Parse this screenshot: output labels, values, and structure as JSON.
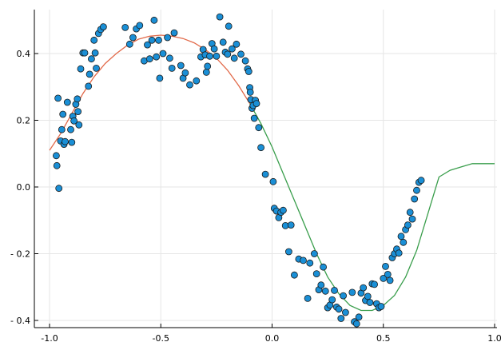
{
  "chart_data": {
    "type": "scatter",
    "title": "",
    "xlabel": "",
    "ylabel": "",
    "xlim": [
      -1.0,
      1.0
    ],
    "ylim": [
      -0.42,
      0.52
    ],
    "grid": true,
    "legend": "none",
    "x_ticks": [
      -1.0,
      -0.5,
      0.0,
      0.5,
      1.0
    ],
    "x_tick_labels": [
      "-1.0",
      "-0.5",
      "0.0",
      "0.5",
      "1.0"
    ],
    "y_ticks": [
      -0.4,
      -0.2,
      0.0,
      0.2,
      0.4
    ],
    "y_tick_labels": [
      "- 0.4",
      "- 0.2",
      "0.0",
      "0.2",
      "0.4"
    ],
    "colors": {
      "points": "#1a8fd6",
      "point_edge": "#1a1a1a",
      "fit_left": "#e26a4a",
      "fit_right": "#3a9e4c",
      "grid": "#e6e6e6"
    },
    "series": [
      {
        "type": "scatter",
        "points": [
          [
            -0.97,
            0.094
          ],
          [
            -0.967,
            0.064
          ],
          [
            -0.962,
            0.266
          ],
          [
            -0.958,
            -0.004
          ],
          [
            -0.95,
            0.138
          ],
          [
            -0.945,
            0.172
          ],
          [
            -0.94,
            0.218
          ],
          [
            -0.935,
            0.128
          ],
          [
            -0.93,
            0.136
          ],
          [
            -0.92,
            0.254
          ],
          [
            -0.905,
            0.172
          ],
          [
            -0.9,
            0.134
          ],
          [
            -0.895,
            0.212
          ],
          [
            -0.89,
            0.198
          ],
          [
            -0.882,
            0.248
          ],
          [
            -0.875,
            0.264
          ],
          [
            -0.872,
            0.226
          ],
          [
            -0.868,
            0.186
          ],
          [
            -0.86,
            0.354
          ],
          [
            -0.85,
            0.402
          ],
          [
            -0.842,
            0.402
          ],
          [
            -0.825,
            0.302
          ],
          [
            -0.82,
            0.338
          ],
          [
            -0.812,
            0.384
          ],
          [
            -0.8,
            0.44
          ],
          [
            -0.795,
            0.402
          ],
          [
            -0.79,
            0.356
          ],
          [
            -0.78,
            0.46
          ],
          [
            -0.77,
            0.472
          ],
          [
            -0.758,
            0.48
          ],
          [
            -0.66,
            0.478
          ],
          [
            -0.64,
            0.428
          ],
          [
            -0.625,
            0.448
          ],
          [
            -0.61,
            0.474
          ],
          [
            -0.595,
            0.484
          ],
          [
            -0.575,
            0.378
          ],
          [
            -0.56,
            0.426
          ],
          [
            -0.55,
            0.384
          ],
          [
            -0.54,
            0.44
          ],
          [
            -0.53,
            0.5
          ],
          [
            -0.52,
            0.39
          ],
          [
            -0.51,
            0.44
          ],
          [
            -0.505,
            0.326
          ],
          [
            -0.49,
            0.4
          ],
          [
            -0.47,
            0.448
          ],
          [
            -0.46,
            0.386
          ],
          [
            -0.45,
            0.356
          ],
          [
            -0.44,
            0.462
          ],
          [
            -0.41,
            0.364
          ],
          [
            -0.4,
            0.326
          ],
          [
            -0.39,
            0.342
          ],
          [
            -0.37,
            0.306
          ],
          [
            -0.34,
            0.318
          ],
          [
            -0.32,
            0.39
          ],
          [
            -0.31,
            0.412
          ],
          [
            -0.3,
            0.396
          ],
          [
            -0.295,
            0.344
          ],
          [
            -0.29,
            0.362
          ],
          [
            -0.28,
            0.392
          ],
          [
            -0.27,
            0.43
          ],
          [
            -0.26,
            0.414
          ],
          [
            -0.25,
            0.392
          ],
          [
            -0.235,
            0.51
          ],
          [
            -0.22,
            0.434
          ],
          [
            -0.21,
            0.404
          ],
          [
            -0.2,
            0.398
          ],
          [
            -0.195,
            0.482
          ],
          [
            -0.18,
            0.414
          ],
          [
            -0.17,
            0.386
          ],
          [
            -0.16,
            0.428
          ],
          [
            -0.14,
            0.398
          ],
          [
            -0.12,
            0.378
          ],
          [
            -0.11,
            0.354
          ],
          [
            -0.105,
            0.346
          ],
          [
            -0.1,
            0.298
          ],
          [
            -0.098,
            0.284
          ],
          [
            -0.095,
            0.262
          ],
          [
            -0.09,
            0.236
          ],
          [
            -0.085,
            0.244
          ],
          [
            -0.08,
            0.206
          ],
          [
            -0.075,
            0.26
          ],
          [
            -0.07,
            0.25
          ],
          [
            -0.06,
            0.178
          ],
          [
            -0.05,
            0.118
          ],
          [
            -0.03,
            0.038
          ],
          [
            0.005,
            0.016
          ],
          [
            0.01,
            -0.064
          ],
          [
            0.02,
            -0.072
          ],
          [
            0.03,
            -0.092
          ],
          [
            0.04,
            -0.076
          ],
          [
            0.05,
            -0.07
          ],
          [
            0.06,
            -0.116
          ],
          [
            0.075,
            -0.194
          ],
          [
            0.085,
            -0.114
          ],
          [
            0.1,
            -0.264
          ],
          [
            0.12,
            -0.216
          ],
          [
            0.14,
            -0.22
          ],
          [
            0.16,
            -0.334
          ],
          [
            0.17,
            -0.228
          ],
          [
            0.19,
            -0.2
          ],
          [
            0.2,
            -0.26
          ],
          [
            0.21,
            -0.308
          ],
          [
            0.22,
            -0.294
          ],
          [
            0.23,
            -0.24
          ],
          [
            0.24,
            -0.312
          ],
          [
            0.25,
            -0.362
          ],
          [
            0.26,
            -0.354
          ],
          [
            0.27,
            -0.338
          ],
          [
            0.28,
            -0.31
          ],
          [
            0.29,
            -0.36
          ],
          [
            0.3,
            -0.366
          ],
          [
            0.31,
            -0.394
          ],
          [
            0.32,
            -0.326
          ],
          [
            0.33,
            -0.376
          ],
          [
            0.36,
            -0.316
          ],
          [
            0.37,
            -0.404
          ],
          [
            0.38,
            -0.41
          ],
          [
            0.39,
            -0.39
          ],
          [
            0.4,
            -0.318
          ],
          [
            0.41,
            -0.302
          ],
          [
            0.42,
            -0.34
          ],
          [
            0.43,
            -0.328
          ],
          [
            0.44,
            -0.346
          ],
          [
            0.45,
            -0.29
          ],
          [
            0.46,
            -0.292
          ],
          [
            0.47,
            -0.35
          ],
          [
            0.48,
            -0.362
          ],
          [
            0.49,
            -0.358
          ],
          [
            0.5,
            -0.274
          ],
          [
            0.51,
            -0.238
          ],
          [
            0.52,
            -0.262
          ],
          [
            0.53,
            -0.28
          ],
          [
            0.54,
            -0.212
          ],
          [
            0.55,
            -0.2
          ],
          [
            0.56,
            -0.186
          ],
          [
            0.57,
            -0.198
          ],
          [
            0.58,
            -0.148
          ],
          [
            0.59,
            -0.166
          ],
          [
            0.6,
            -0.128
          ],
          [
            0.61,
            -0.114
          ],
          [
            0.62,
            -0.076
          ],
          [
            0.63,
            -0.096
          ],
          [
            0.64,
            -0.036
          ],
          [
            0.65,
            -0.01
          ],
          [
            0.66,
            0.014
          ],
          [
            0.67,
            0.02
          ]
        ]
      },
      {
        "type": "line",
        "color": "#e26a4a",
        "points": [
          [
            -1.0,
            0.11
          ],
          [
            -0.95,
            0.16
          ],
          [
            -0.9,
            0.22
          ],
          [
            -0.85,
            0.28
          ],
          [
            -0.8,
            0.33
          ],
          [
            -0.75,
            0.37
          ],
          [
            -0.7,
            0.4
          ],
          [
            -0.65,
            0.425
          ],
          [
            -0.6,
            0.443
          ],
          [
            -0.55,
            0.452
          ],
          [
            -0.5,
            0.455
          ],
          [
            -0.45,
            0.452
          ],
          [
            -0.4,
            0.445
          ],
          [
            -0.35,
            0.432
          ],
          [
            -0.3,
            0.412
          ],
          [
            -0.25,
            0.386
          ],
          [
            -0.2,
            0.35
          ],
          [
            -0.15,
            0.304
          ],
          [
            -0.1,
            0.25
          ]
        ]
      },
      {
        "type": "line",
        "color": "#3a9e4c",
        "points": [
          [
            -0.1,
            0.25
          ],
          [
            -0.05,
            0.19
          ],
          [
            0.0,
            0.12
          ],
          [
            0.05,
            0.04
          ],
          [
            0.1,
            -0.04
          ],
          [
            0.15,
            -0.12
          ],
          [
            0.2,
            -0.2
          ],
          [
            0.25,
            -0.27
          ],
          [
            0.3,
            -0.32
          ],
          [
            0.35,
            -0.355
          ],
          [
            0.4,
            -0.37
          ],
          [
            0.45,
            -0.37
          ],
          [
            0.5,
            -0.355
          ],
          [
            0.55,
            -0.325
          ],
          [
            0.6,
            -0.27
          ],
          [
            0.65,
            -0.19
          ],
          [
            0.7,
            -0.08
          ],
          [
            0.75,
            0.03
          ],
          [
            0.8,
            0.05
          ],
          [
            0.85,
            0.06
          ],
          [
            0.9,
            0.07
          ],
          [
            0.95,
            0.07
          ],
          [
            1.0,
            0.07
          ]
        ]
      }
    ]
  }
}
